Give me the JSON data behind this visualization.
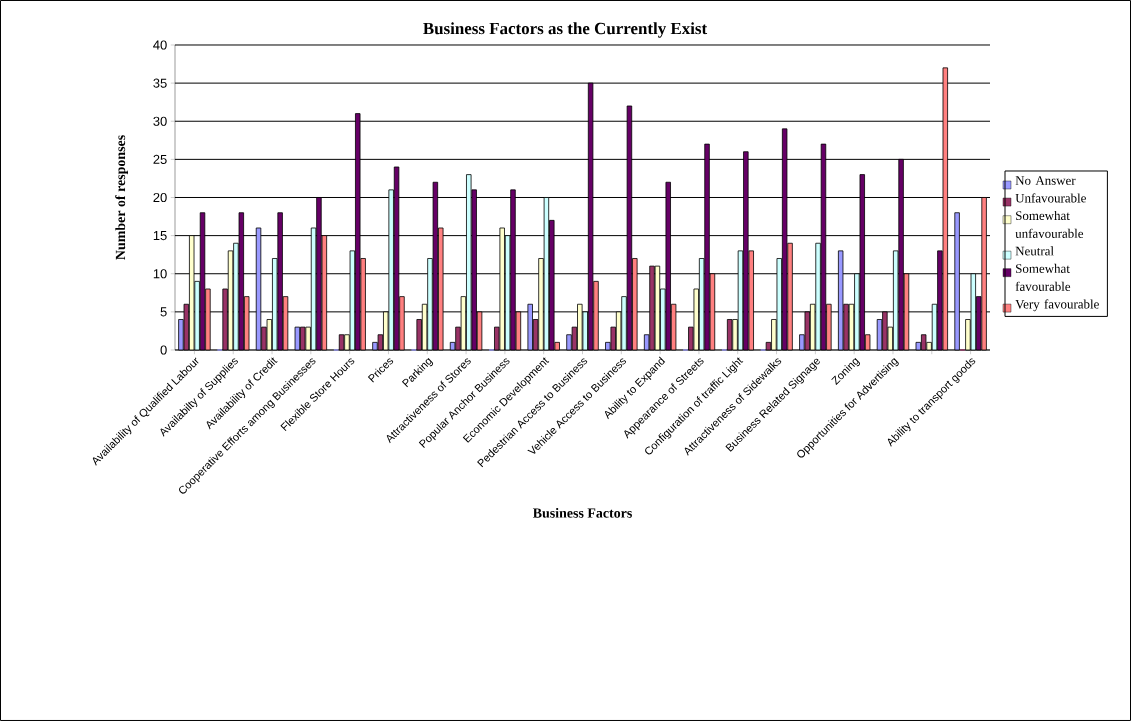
{
  "chart_data": {
    "type": "bar",
    "title": "Business Factors as the Currently Exist",
    "xlabel": "Business Factors",
    "ylabel": "Number of responses",
    "categories": [
      "Availability of Qualified Labour",
      "Availabilty of Supplies",
      "Availability of Credit",
      "Cooperative Efforts among Businesses",
      "Flexible Store Hours",
      "Prices",
      "Parking",
      "Attractiveness of Stores",
      "Popular Anchor Business",
      "Economic Development",
      "Pedestrian Access to Business",
      "Vehicle Access to Business",
      "Ability to Expand",
      "Appearance of Streets",
      "Configuration of traffic Light",
      "Attractiveness of Sidewalks",
      "Business Related Signage",
      "Zoning",
      "Opportunities for Advertising",
      null,
      "Ability to transport goods"
    ],
    "series": [
      {
        "name": "No Answer",
        "color": "#9999ff",
        "values": [
          4,
          0,
          16,
          3,
          0,
          1,
          0,
          1,
          0,
          6,
          2,
          1,
          2,
          0,
          0,
          0,
          2,
          13,
          4,
          1,
          18
        ]
      },
      {
        "name": "Unfavourable",
        "color": "#993366",
        "values": [
          6,
          8,
          3,
          3,
          2,
          2,
          4,
          3,
          3,
          4,
          3,
          3,
          11,
          3,
          4,
          1,
          5,
          6,
          5,
          2,
          0
        ]
      },
      {
        "name": "Somewhat unfavourable",
        "color": "#ffffcc",
        "values": [
          15,
          13,
          4,
          3,
          2,
          5,
          6,
          7,
          16,
          12,
          6,
          5,
          11,
          8,
          4,
          4,
          6,
          6,
          3,
          1,
          4
        ]
      },
      {
        "name": "Neutral",
        "color": "#ccffff",
        "values": [
          9,
          14,
          12,
          16,
          13,
          21,
          12,
          23,
          15,
          20,
          5,
          7,
          8,
          12,
          13,
          12,
          14,
          10,
          13,
          6,
          10
        ]
      },
      {
        "name": "Somewhat favourable",
        "color": "#660066",
        "values": [
          18,
          18,
          18,
          20,
          31,
          24,
          22,
          21,
          21,
          17,
          35,
          32,
          22,
          27,
          26,
          29,
          27,
          23,
          25,
          13,
          7
        ]
      },
      {
        "name": "Very favourable",
        "color": "#ff8080",
        "values": [
          8,
          7,
          7,
          15,
          12,
          7,
          16,
          5,
          5,
          1,
          9,
          12,
          6,
          10,
          13,
          14,
          6,
          2,
          10,
          37,
          20
        ]
      }
    ],
    "ylim": [
      0,
      40
    ],
    "yticks": [
      0,
      5,
      10,
      15,
      20,
      25,
      30,
      35,
      40
    ],
    "grid": "y",
    "legend": "right"
  }
}
